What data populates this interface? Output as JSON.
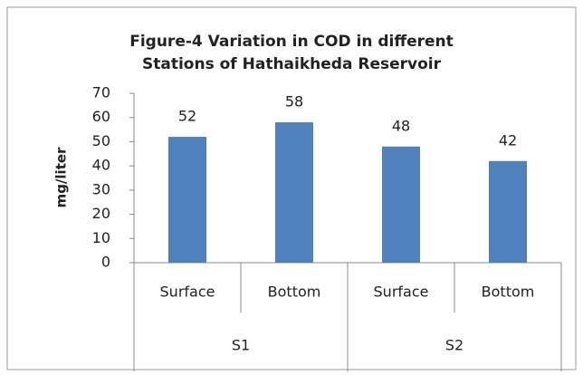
{
  "chart_data": {
    "type": "bar",
    "title": [
      "Figure-4 Variation in COD in different",
      "Stations of Hathaikheda Reservoir"
    ],
    "y_label": "mg/liter",
    "categories": [
      "Surface",
      "Bottom",
      "Surface",
      "Bottom"
    ],
    "groups": [
      "S1",
      "S2"
    ],
    "values": [
      52,
      58,
      48,
      42
    ],
    "color": "#4f81bd",
    "ylim": [
      0,
      70
    ],
    "yticks": [
      0,
      10,
      20,
      30,
      40,
      50,
      60,
      70
    ],
    "grid": false
  }
}
